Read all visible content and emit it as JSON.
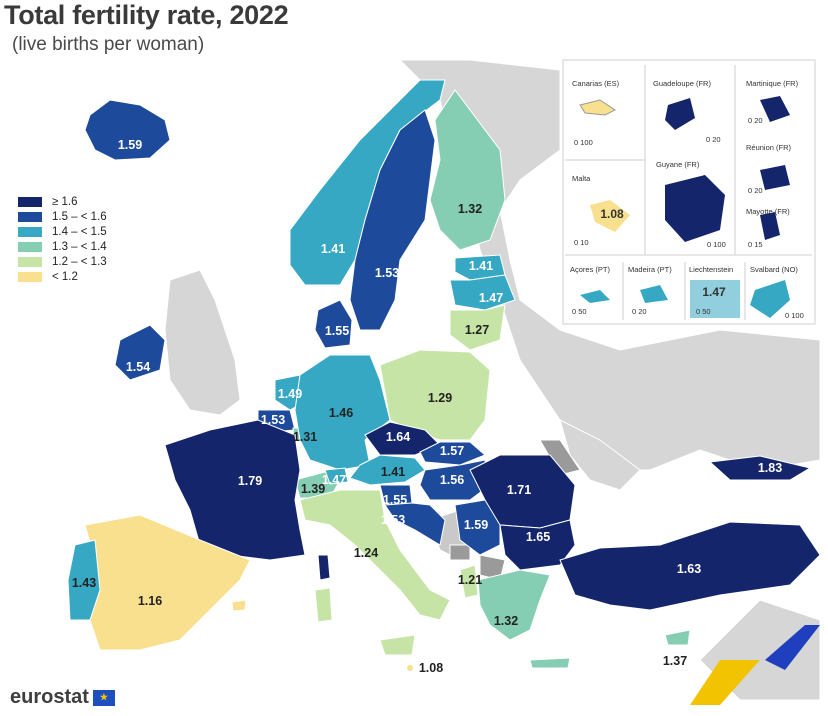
{
  "title": "Total fertility rate, 2022",
  "subtitle": "(live births per woman)",
  "logo_text": "eurostat",
  "colors": {
    "c1": "#14256b",
    "c2": "#1d4a9a",
    "c3": "#36a8c4",
    "c4": "#85cdb3",
    "c5": "#c6e4a6",
    "c6": "#f8e08e",
    "nodata": "#d6d6d6",
    "sea": "#ffffff"
  },
  "legend": [
    {
      "label": "≥ 1.6",
      "color": "#14256b"
    },
    {
      "label": "1.5 – < 1.6",
      "color": "#1d4a9a"
    },
    {
      "label": "1.4 – < 1.5",
      "color": "#36a8c4"
    },
    {
      "label": "1.3 – < 1.4",
      "color": "#85cdb3"
    },
    {
      "label": "1.2 – < 1.3",
      "color": "#c6e4a6"
    },
    {
      "label": "< 1.2",
      "color": "#f8e08e"
    }
  ],
  "map_labels": {
    "iceland": "1.59",
    "norway": "1.41",
    "sweden": "1.53",
    "finland": "1.32",
    "estonia": "1.41",
    "latvia": "1.47",
    "lithuania": "1.27",
    "denmark": "1.55",
    "ireland": "1.54",
    "netherlands": "1.49",
    "belgium": "1.53",
    "luxembourg": "1.31",
    "germany": "1.46",
    "poland": "1.29",
    "czechia": "1.64",
    "slovakia": "1.57",
    "hungary": "1.56",
    "austria": "1.41",
    "switzerland": "1.39",
    "liechtenstein": "1.47",
    "france": "1.79",
    "slovenia": "1.55",
    "croatia": "1.53",
    "serbia": "1.59",
    "romania": "1.71",
    "bulgaria": "1.65",
    "georgia": "1.83",
    "turkey": "1.63",
    "italy": "1.24",
    "albania": "1.21",
    "greece": "1.32",
    "cyprus": "1.37",
    "malta": "1.08",
    "spain": "1.16",
    "portugal": "1.43"
  },
  "insets": [
    {
      "name": "Canarias (ES)",
      "scale": "0   100"
    },
    {
      "name": "Guadeloupe (FR)",
      "scale": "0   20"
    },
    {
      "name": "Martinique (FR)",
      "scale": "0   20"
    },
    {
      "name": "Réunion (FR)",
      "scale": "0   20"
    },
    {
      "name": "Guyane (FR)",
      "scale": "0   100"
    },
    {
      "name": "Malta",
      "scale": "0   10",
      "value": "1.08"
    },
    {
      "name": "Mayotte (FR)",
      "scale": "0   15"
    },
    {
      "name": "Açores (PT)",
      "scale": "0   50"
    },
    {
      "name": "Madeira (PT)",
      "scale": "0   20"
    },
    {
      "name": "Liechtenstein",
      "scale": "0   50",
      "value": "1.47"
    },
    {
      "name": "Svalbard (NO)",
      "scale": "0   100"
    }
  ]
}
